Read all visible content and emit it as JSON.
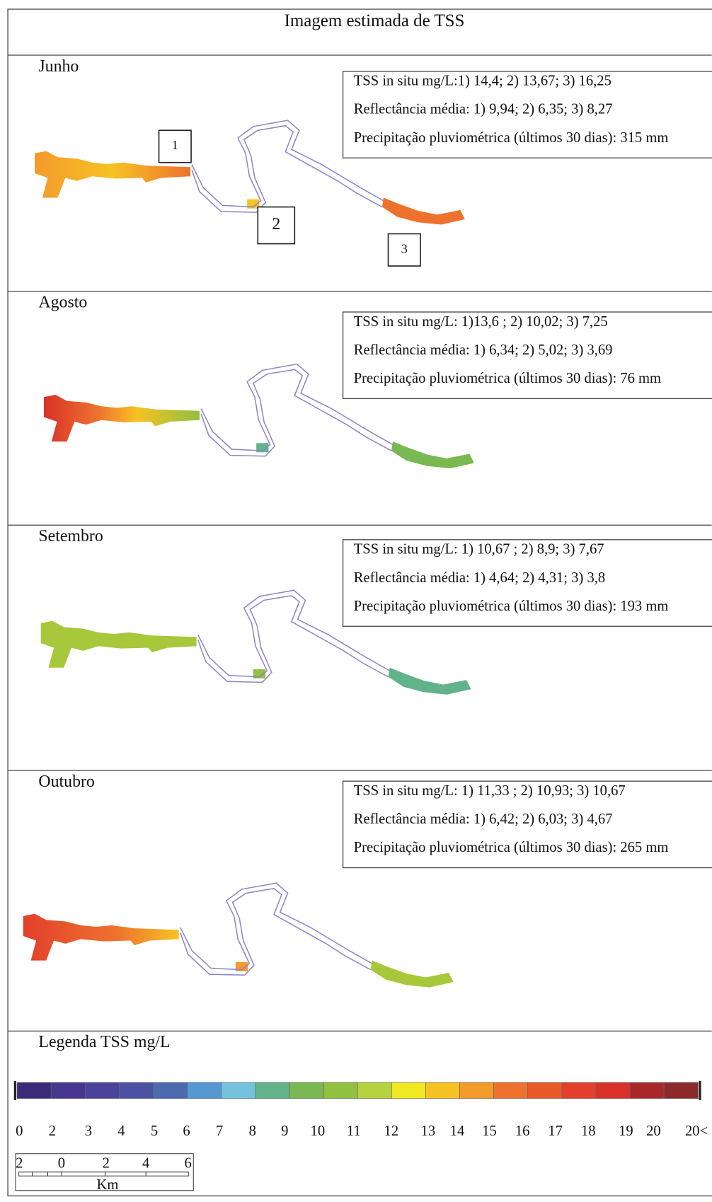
{
  "title": "Imagem estimada de TSS",
  "panels": [
    {
      "month": "Junho",
      "lines": [
        "TSS in situ mg/L:1) 14,4; 2) 13,67; 3) 16,25",
        "Reflectância média: 1) 9,94; 2) 6,35; 3) 8,27",
        "Precipitação pluviométrica (últimos 30 dias): 315 mm"
      ],
      "markers": [
        "1",
        "2",
        "3"
      ]
    },
    {
      "month": "Agosto",
      "lines": [
        "TSS in situ mg/L: 1)13,6 ; 2) 10,02; 3) 7,25",
        "Reflectância média: 1) 6,34; 2) 5,02; 3) 3,69",
        "Precipitação pluviométrica (últimos 30 dias): 76 mm"
      ]
    },
    {
      "month": "Setembro",
      "lines": [
        "TSS in situ mg/L: 1) 10,67 ; 2) 8,9; 3) 7,67",
        "Reflectância média: 1) 4,64; 2) 4,31; 3) 3,8",
        "Precipitação pluviométrica (últimos 30 dias): 193 mm"
      ]
    },
    {
      "month": "Outubro",
      "lines": [
        "TSS in situ mg/L: 1) 11,33 ; 2) 10,93; 3) 10,67",
        "Reflectância média: 1) 6,42; 2) 6,03; 3) 4,67",
        "Precipitação pluviométrica (últimos 30 dias): 265 mm"
      ]
    }
  ],
  "legend": {
    "title": "Legenda TSS mg/L",
    "labels": [
      "0",
      "2",
      "3",
      "4",
      "5",
      "6",
      "7",
      "8",
      "9",
      "10",
      "11",
      "12",
      "13",
      "14",
      "15",
      "16",
      "17",
      "18",
      "19",
      "20",
      "20<"
    ],
    "colors": [
      "#3a2a78",
      "#47368f",
      "#4a449c",
      "#4c51a3",
      "#4d6aae",
      "#5698d2",
      "#74c2dc",
      "#62b38a",
      "#7ab852",
      "#92c040",
      "#b7d240",
      "#efe822",
      "#f7c223",
      "#f39a2c",
      "#ee722e",
      "#e95a2a",
      "#e2402c",
      "#d93128",
      "#a8282a",
      "#8c2a2a"
    ]
  },
  "scale_bar": {
    "labels": [
      "2",
      "0",
      "2",
      "4",
      "6"
    ],
    "unit": "Km"
  }
}
